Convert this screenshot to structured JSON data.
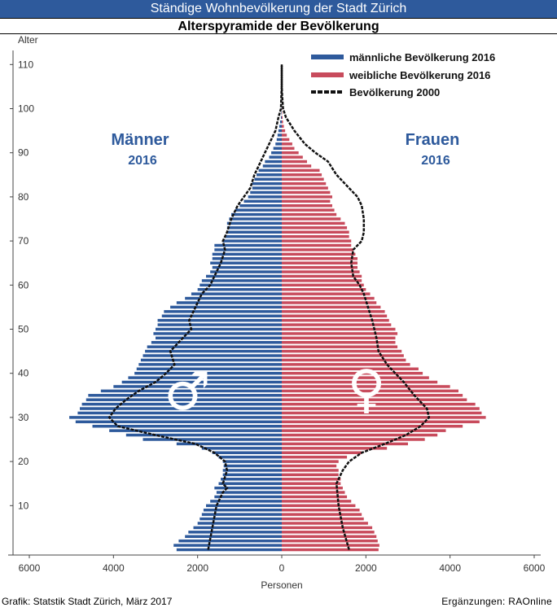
{
  "header": {
    "title": "Ständige Wohnbevölkerung der Stadt Zürich",
    "subtitle": "Alterspyramide der Bevölkerung"
  },
  "footer": {
    "source": "Grafik: Statstik Stadt Zürich, März 2017",
    "addition": "Ergänzungen: RAOnline"
  },
  "colors": {
    "male": "#2E5A9C",
    "female": "#C84B5C",
    "line2000": "#111111",
    "header_bg": "#2E5A9C"
  },
  "chart_data": {
    "type": "bar",
    "orientation": "horizontal",
    "title": "Alterspyramide der Bevölkerung",
    "ylabel": "Alter",
    "xlabel": "Personen",
    "xlim": [
      -6000,
      6000
    ],
    "ylim": [
      0,
      110
    ],
    "x_ticks": [
      "6000",
      "4000",
      "2000",
      "0",
      "2000",
      "4000",
      "6000"
    ],
    "y_ticks": [
      "10",
      "20",
      "30",
      "40",
      "50",
      "60",
      "70",
      "80",
      "90",
      "100",
      "110"
    ],
    "labels": {
      "men": "Männer",
      "men_year": "2016",
      "women": "Frauen",
      "women_year": "2016",
      "male_symbol": "♂",
      "female_symbol": "♀"
    },
    "legend": {
      "placement": "top-right",
      "entries": [
        "männliche Bevölkerung 2016",
        "weibliche Bevölkerung 2016",
        "Bevölkerung 2000"
      ]
    },
    "ages_start": 0,
    "male_2016": [
      2500,
      2570,
      2450,
      2300,
      2220,
      2100,
      2000,
      1950,
      1900,
      1860,
      1800,
      1700,
      1600,
      1550,
      1600,
      1500,
      1450,
      1400,
      1400,
      1380,
      1400,
      1500,
      1650,
      1900,
      2500,
      3300,
      3700,
      4100,
      4500,
      4900,
      5050,
      4850,
      4800,
      4750,
      4650,
      4600,
      4300,
      4000,
      3800,
      3650,
      3500,
      3450,
      3400,
      3350,
      3300,
      3250,
      3200,
      3100,
      3000,
      3050,
      3000,
      2950,
      2950,
      2850,
      2800,
      2650,
      2500,
      2300,
      2150,
      2000,
      1950,
      1900,
      1800,
      1700,
      1650,
      1700,
      1650,
      1650,
      1600,
      1600,
      1400,
      1350,
      1300,
      1300,
      1300,
      1250,
      1200,
      1100,
      1000,
      900,
      800,
      750,
      700,
      700,
      650,
      600,
      550,
      450,
      400,
      300,
      250,
      200,
      150,
      120,
      100,
      80,
      60,
      40,
      20,
      10,
      5,
      0,
      0,
      0,
      0,
      0,
      0,
      0,
      0,
      0,
      0
    ],
    "female_2016": [
      2300,
      2320,
      2280,
      2250,
      2200,
      2150,
      2050,
      1950,
      1900,
      1850,
      1750,
      1650,
      1550,
      1500,
      1450,
      1400,
      1400,
      1350,
      1350,
      1300,
      1350,
      1550,
      1900,
      2500,
      3000,
      3400,
      3700,
      3900,
      4300,
      4700,
      4850,
      4750,
      4700,
      4600,
      4400,
      4300,
      4200,
      4000,
      3700,
      3500,
      3350,
      3250,
      3050,
      2950,
      2900,
      2850,
      2750,
      2700,
      2700,
      2750,
      2700,
      2600,
      2550,
      2500,
      2450,
      2350,
      2250,
      2200,
      2100,
      2000,
      1950,
      1900,
      1900,
      1850,
      1800,
      1800,
      1800,
      1750,
      1700,
      1650,
      1650,
      1600,
      1600,
      1550,
      1500,
      1400,
      1300,
      1250,
      1200,
      1150,
      1200,
      1150,
      1100,
      1050,
      1000,
      950,
      900,
      700,
      600,
      500,
      400,
      300,
      250,
      180,
      120,
      80,
      50,
      30,
      20,
      10,
      5,
      0,
      0,
      0,
      0,
      0,
      0,
      0,
      0,
      0,
      0
    ],
    "male_2000_ages": [
      0,
      10,
      13,
      14,
      15,
      18,
      20,
      22,
      24,
      26,
      28,
      30,
      32,
      34,
      36,
      38,
      40,
      42,
      45,
      48,
      50,
      52,
      55,
      58,
      60,
      62,
      65,
      68,
      70,
      72,
      75,
      78,
      80,
      82,
      85,
      88,
      90,
      92,
      95,
      98,
      100,
      103,
      105,
      108,
      110
    ],
    "male_2000": [
      1750,
      1550,
      1400,
      1300,
      1400,
      1300,
      1350,
      1600,
      2050,
      3000,
      3900,
      4100,
      3950,
      3700,
      3400,
      3000,
      2750,
      2550,
      2650,
      2350,
      2150,
      2200,
      2050,
      1900,
      1700,
      1600,
      1450,
      1350,
      1400,
      1300,
      1200,
      1050,
      900,
      750,
      650,
      500,
      400,
      300,
      150,
      80,
      20,
      10,
      0,
      0,
      0
    ],
    "female_2000_ages": [
      0,
      5,
      10,
      15,
      18,
      20,
      22,
      24,
      26,
      28,
      30,
      32,
      35,
      38,
      40,
      42,
      45,
      48,
      50,
      52,
      55,
      58,
      60,
      62,
      65,
      68,
      70,
      72,
      75,
      78,
      80,
      82,
      85,
      88,
      90,
      92,
      95,
      98,
      100,
      103,
      105,
      108,
      110
    ],
    "female_2000": [
      1600,
      1450,
      1350,
      1300,
      1450,
      1600,
      1900,
      2450,
      2950,
      3300,
      3500,
      3450,
      3150,
      2900,
      2700,
      2500,
      2300,
      2250,
      2200,
      2150,
      2050,
      1950,
      1850,
      1700,
      1650,
      1700,
      1900,
      1950,
      1950,
      1900,
      1800,
      1600,
      1300,
      1100,
      800,
      550,
      300,
      100,
      30,
      10,
      0,
      0,
      0
    ]
  }
}
